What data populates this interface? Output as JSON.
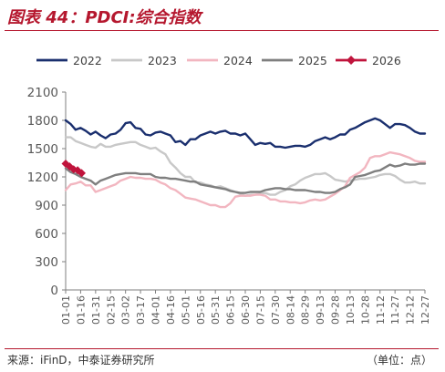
{
  "title": "图表 44：PDCI:综合指数",
  "source": "来源：iFinD，中泰证券研究所",
  "unit": "（单位：点）",
  "colors": {
    "accent": "#b5172e",
    "s2022": "#1a2f6e",
    "s2023": "#c8c8c8",
    "s2024": "#f2b6c0",
    "s2025": "#7f7f7f",
    "s2026": "#c0143c"
  },
  "chart_data": {
    "type": "line",
    "ylim": [
      0,
      2100
    ],
    "yticks": [
      "0",
      "300",
      "600",
      "900",
      "1200",
      "1500",
      "1800",
      "2100"
    ],
    "xticks": [
      "01-01",
      "01-16",
      "01-31",
      "02-15",
      "03-02",
      "03-17",
      "04-01",
      "04-16",
      "05-01",
      "05-16",
      "05-31",
      "06-15",
      "06-30",
      "07-15",
      "07-30",
      "08-14",
      "08-29",
      "09-13",
      "09-28",
      "10-13",
      "10-28",
      "11-12",
      "11-27",
      "12-12",
      "12-27"
    ],
    "grid": false,
    "legend": "top",
    "series": [
      {
        "name": "2022",
        "x": [
          0,
          5,
          10,
          15,
          20,
          25,
          30,
          35,
          40,
          45,
          50,
          55,
          60,
          65,
          70,
          75,
          80,
          85,
          90,
          95,
          100,
          105,
          110,
          115,
          120,
          125,
          130,
          135,
          140,
          145,
          150,
          155,
          160,
          165,
          170,
          175,
          180,
          185,
          190,
          195,
          200,
          205,
          210,
          215,
          220,
          225,
          230,
          235,
          240,
          245,
          250,
          255,
          260,
          265,
          270,
          275,
          280,
          285,
          290,
          295,
          300,
          305,
          310,
          315,
          320,
          325,
          330,
          335,
          340,
          345,
          350,
          355,
          360
        ],
        "y": [
          1800,
          1760,
          1700,
          1720,
          1690,
          1650,
          1680,
          1640,
          1610,
          1650,
          1660,
          1700,
          1770,
          1780,
          1720,
          1710,
          1650,
          1640,
          1670,
          1680,
          1660,
          1640,
          1570,
          1580,
          1540,
          1600,
          1600,
          1640,
          1660,
          1680,
          1660,
          1680,
          1690,
          1660,
          1660,
          1640,
          1660,
          1600,
          1540,
          1560,
          1550,
          1560,
          1520,
          1520,
          1510,
          1520,
          1530,
          1530,
          1520,
          1540,
          1580,
          1600,
          1620,
          1600,
          1620,
          1650,
          1650,
          1700,
          1720,
          1750,
          1780,
          1800,
          1820,
          1800,
          1760,
          1720,
          1760,
          1760,
          1750,
          1720,
          1680,
          1660,
          1660
        ]
      },
      {
        "name": "2023",
        "x": [
          0,
          5,
          10,
          15,
          20,
          25,
          30,
          35,
          40,
          45,
          50,
          55,
          60,
          65,
          70,
          75,
          80,
          85,
          90,
          95,
          100,
          105,
          110,
          115,
          120,
          125,
          130,
          135,
          140,
          145,
          150,
          155,
          160,
          165,
          170,
          175,
          180,
          185,
          190,
          195,
          200,
          205,
          210,
          215,
          220,
          225,
          230,
          235,
          240,
          245,
          250,
          255,
          260,
          265,
          270,
          275,
          280,
          285,
          290,
          295,
          300,
          305,
          310,
          315,
          320,
          325,
          330,
          335,
          340,
          345,
          350,
          355,
          360
        ],
        "y": [
          1620,
          1620,
          1580,
          1560,
          1540,
          1520,
          1510,
          1550,
          1520,
          1520,
          1540,
          1550,
          1560,
          1570,
          1570,
          1540,
          1520,
          1500,
          1510,
          1470,
          1440,
          1350,
          1300,
          1240,
          1200,
          1200,
          1140,
          1140,
          1120,
          1110,
          1090,
          1100,
          1080,
          1060,
          1040,
          1020,
          1000,
          1010,
          1010,
          1020,
          1030,
          1010,
          1010,
          1040,
          1060,
          1100,
          1120,
          1160,
          1190,
          1210,
          1230,
          1230,
          1240,
          1210,
          1170,
          1160,
          1150,
          1160,
          1170,
          1180,
          1180,
          1190,
          1200,
          1220,
          1230,
          1230,
          1210,
          1170,
          1140,
          1140,
          1150,
          1130,
          1130
        ]
      },
      {
        "name": "2024",
        "x": [
          0,
          5,
          10,
          15,
          20,
          25,
          30,
          35,
          40,
          45,
          50,
          55,
          60,
          65,
          70,
          75,
          80,
          85,
          90,
          95,
          100,
          105,
          110,
          115,
          120,
          125,
          130,
          135,
          140,
          145,
          150,
          155,
          160,
          165,
          170,
          175,
          180,
          185,
          190,
          195,
          200,
          205,
          210,
          215,
          220,
          225,
          230,
          235,
          240,
          245,
          250,
          255,
          260,
          265,
          270,
          275,
          280,
          285,
          290,
          295,
          300,
          305,
          310,
          315,
          320,
          325,
          330,
          335,
          340,
          345,
          350,
          355,
          360
        ],
        "y": [
          1060,
          1120,
          1130,
          1150,
          1110,
          1110,
          1040,
          1060,
          1080,
          1100,
          1120,
          1160,
          1180,
          1200,
          1190,
          1190,
          1180,
          1180,
          1170,
          1140,
          1120,
          1080,
          1060,
          1020,
          980,
          970,
          960,
          940,
          920,
          900,
          900,
          880,
          880,
          920,
          990,
          1000,
          1000,
          1000,
          1010,
          1010,
          1000,
          960,
          960,
          940,
          940,
          930,
          930,
          920,
          930,
          950,
          960,
          950,
          960,
          990,
          1020,
          1060,
          1100,
          1190,
          1220,
          1250,
          1300,
          1400,
          1420,
          1420,
          1440,
          1460,
          1450,
          1440,
          1420,
          1400,
          1370,
          1360,
          1360
        ]
      },
      {
        "name": "2025",
        "x": [
          0,
          5,
          10,
          15,
          20,
          25,
          30,
          35,
          40,
          45,
          50,
          55,
          60,
          65,
          70,
          75,
          80,
          85,
          90,
          95,
          100,
          105,
          110,
          115,
          120,
          125,
          130,
          135,
          140,
          145,
          150,
          155,
          160,
          165,
          170,
          175,
          180,
          185,
          190,
          195,
          200,
          205,
          210,
          215,
          220,
          225,
          230,
          235,
          240,
          245,
          250,
          255,
          260,
          265,
          270,
          275,
          280,
          285,
          290,
          295,
          300,
          305,
          310,
          315,
          320,
          325,
          330,
          335,
          340,
          345,
          350,
          355,
          360
        ],
        "y": [
          1290,
          1250,
          1230,
          1200,
          1180,
          1160,
          1120,
          1160,
          1180,
          1200,
          1220,
          1230,
          1240,
          1240,
          1240,
          1230,
          1230,
          1230,
          1200,
          1190,
          1190,
          1180,
          1180,
          1170,
          1160,
          1150,
          1150,
          1120,
          1110,
          1100,
          1090,
          1080,
          1070,
          1050,
          1040,
          1030,
          1030,
          1040,
          1040,
          1040,
          1060,
          1070,
          1080,
          1080,
          1070,
          1070,
          1060,
          1060,
          1060,
          1050,
          1040,
          1040,
          1030,
          1030,
          1040,
          1070,
          1090,
          1120,
          1200,
          1210,
          1220,
          1240,
          1260,
          1270,
          1300,
          1330,
          1310,
          1320,
          1340,
          1330,
          1330,
          1340,
          1340
        ]
      },
      {
        "name": "2026",
        "x": [
          0,
          4,
          8,
          12,
          16
        ],
        "y": [
          1340,
          1310,
          1280,
          1270,
          1240
        ]
      }
    ]
  }
}
